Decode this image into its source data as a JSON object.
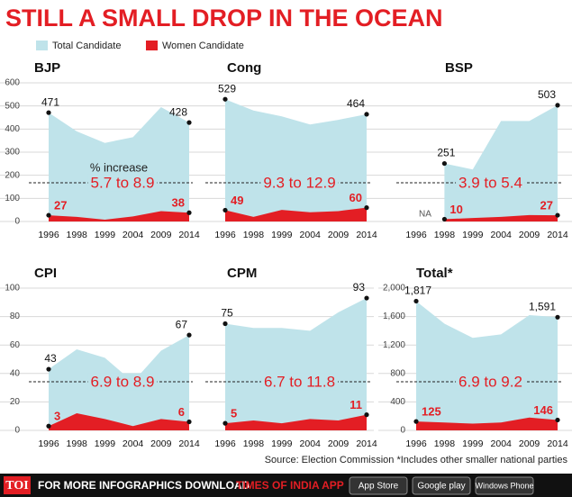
{
  "title": "STILL A SMALL DROP IN THE OCEAN",
  "legend": [
    {
      "name": "Total Candidate",
      "color": "#bfe3ea"
    },
    {
      "name": "Women Candidate",
      "color": "#e31e24"
    }
  ],
  "chart_data": [
    {
      "type": "area",
      "title": "BJP",
      "categories": [
        "1996",
        "1998",
        "1999",
        "2004",
        "2009",
        "2014"
      ],
      "series": [
        {
          "color": "#bfe3ea",
          "values": [
            471,
            390,
            340,
            365,
            495,
            428
          ]
        },
        {
          "color": "#e31e24",
          "values": [
            27,
            20,
            8,
            22,
            45,
            38
          ]
        }
      ],
      "ylim": [
        0,
        600
      ],
      "yticks": [
        0,
        100,
        200,
        300,
        400,
        500,
        600
      ],
      "grid": true,
      "annotation_title": "% increase",
      "annotation": "5.7 to 8.9"
    },
    {
      "type": "area",
      "title": "Cong",
      "categories": [
        "1996",
        "1998",
        "1999",
        "2004",
        "2009",
        "2014"
      ],
      "series": [
        {
          "color": "#bfe3ea",
          "values": [
            529,
            480,
            455,
            420,
            440,
            464
          ]
        },
        {
          "color": "#e31e24",
          "values": [
            49,
            20,
            50,
            40,
            45,
            60
          ]
        }
      ],
      "ylim": [
        0,
        600
      ],
      "annotation": "9.3 to 12.9"
    },
    {
      "type": "area",
      "title": "BSP",
      "categories": [
        "1996",
        "1998",
        "1999",
        "2004",
        "2009",
        "2014"
      ],
      "series": [
        {
          "color": "#bfe3ea",
          "values": [
            null,
            251,
            225,
            435,
            435,
            503
          ]
        },
        {
          "color": "#e31e24",
          "values": [
            null,
            10,
            15,
            20,
            28,
            27
          ]
        }
      ],
      "ylim": [
        0,
        600
      ],
      "note": "NA",
      "annotation": "3.9 to 5.4"
    },
    {
      "type": "area",
      "title": "CPI",
      "categories": [
        "1996",
        "1998",
        "1999",
        "2004",
        "2009",
        "2014"
      ],
      "series": [
        {
          "color": "#bfe3ea",
          "values": [
            43,
            57,
            51,
            34,
            56,
            67
          ]
        },
        {
          "color": "#e31e24",
          "values": [
            3,
            12,
            8,
            3,
            8,
            6
          ]
        }
      ],
      "ylim": [
        0,
        100
      ],
      "yticks": [
        0,
        20,
        40,
        60,
        80,
        100
      ],
      "grid": true,
      "annotation": "6.9 to 8.9"
    },
    {
      "type": "area",
      "title": "CPM",
      "categories": [
        "1996",
        "1998",
        "1999",
        "2004",
        "2009",
        "2014"
      ],
      "series": [
        {
          "color": "#bfe3ea",
          "values": [
            75,
            72,
            72,
            70,
            83,
            93
          ]
        },
        {
          "color": "#e31e24",
          "values": [
            5,
            7,
            5,
            8,
            7,
            11
          ]
        }
      ],
      "ylim": [
        0,
        100
      ],
      "annotation": "6.7 to 11.8"
    },
    {
      "type": "area",
      "title": "Total*",
      "categories": [
        "1996",
        "1998",
        "1999",
        "2004",
        "2009",
        "2014"
      ],
      "series": [
        {
          "color": "#bfe3ea",
          "values": [
            1817,
            1500,
            1300,
            1350,
            1620,
            1591
          ],
          "value_labels": [
            "1,817",
            null,
            null,
            null,
            null,
            "1,591"
          ]
        },
        {
          "color": "#e31e24",
          "values": [
            125,
            110,
            95,
            110,
            180,
            146
          ]
        }
      ],
      "ylim": [
        0,
        2000
      ],
      "yticks": [
        0,
        400,
        800,
        {
          "value": 1200,
          "label": "1,200"
        },
        {
          "value": 1600,
          "label": "1,600"
        },
        {
          "value": 2000,
          "label": "2,000"
        }
      ],
      "grid": true,
      "annotation": "6.9 to 9.2"
    }
  ],
  "source": "Source: Election Commission *Includes other smaller national parties",
  "footer": {
    "brand": "TOI",
    "text": "FOR MORE  INFOGRAPHICS DOWNLOAD",
    "app": "TIMES OF INDIA APP",
    "stores": [
      "App Store",
      "Google play",
      "Windows Phone"
    ]
  }
}
